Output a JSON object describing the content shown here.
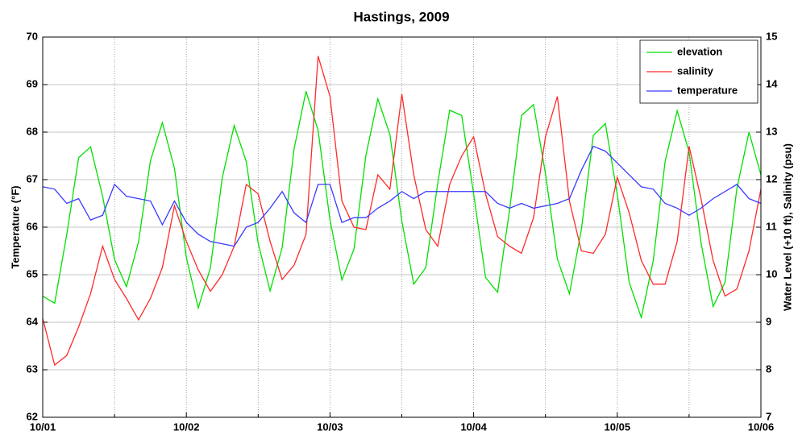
{
  "chart_data": {
    "type": "line",
    "title": "Hastings, 2009",
    "ylabel": "Temperature (°F)",
    "y2label": "Water Level (+10 ft), Salinity (psu)",
    "xlim": [
      0,
      5
    ],
    "ylim": [
      62,
      70
    ],
    "y2lim": [
      7,
      15
    ],
    "xticks": [
      {
        "value": 0,
        "label": "10/01"
      },
      {
        "value": 1,
        "label": "10/02"
      },
      {
        "value": 2,
        "label": "10/03"
      },
      {
        "value": 3,
        "label": "10/04"
      },
      {
        "value": 4,
        "label": "10/05"
      },
      {
        "value": 5,
        "label": "10/06"
      }
    ],
    "x_minor_ticks": [
      0.5,
      1.5,
      2.5,
      3.5,
      4.5
    ],
    "yticks": [
      62,
      63,
      64,
      65,
      66,
      67,
      68,
      69,
      70
    ],
    "y2ticks": [
      7,
      8,
      9,
      10,
      11,
      12,
      13,
      14,
      15
    ],
    "grid": true,
    "legend": "upper right",
    "x": [
      0,
      0.083,
      0.167,
      0.25,
      0.333,
      0.417,
      0.5,
      0.583,
      0.667,
      0.75,
      0.833,
      0.917,
      1,
      1.083,
      1.167,
      1.25,
      1.333,
      1.417,
      1.5,
      1.583,
      1.667,
      1.75,
      1.833,
      1.917,
      2,
      2.083,
      2.167,
      2.25,
      2.333,
      2.417,
      2.5,
      2.583,
      2.667,
      2.75,
      2.833,
      2.917,
      3,
      3.083,
      3.167,
      3.25,
      3.333,
      3.417,
      3.5,
      3.583,
      3.667,
      3.75,
      3.833,
      3.917,
      4,
      4.083,
      4.167,
      4.25,
      4.333,
      4.417,
      4.5,
      4.583,
      4.667,
      4.75,
      4.833,
      4.917,
      5
    ],
    "series": [
      {
        "name": "elevation",
        "color": "#00e000",
        "axis": "y2",
        "values": [
          9.55,
          9.4,
          10.84,
          12.46,
          12.69,
          11.65,
          10.32,
          9.75,
          10.69,
          12.4,
          13.2,
          12.24,
          10.36,
          9.3,
          10.14,
          12.04,
          13.14,
          12.38,
          10.66,
          9.66,
          10.57,
          12.65,
          13.86,
          13.04,
          11.15,
          9.89,
          10.54,
          12.51,
          13.7,
          12.95,
          11.13,
          9.8,
          10.15,
          11.92,
          13.46,
          13.35,
          11.7,
          9.94,
          9.63,
          11.36,
          13.35,
          13.58,
          12.13,
          10.33,
          9.6,
          10.95,
          12.93,
          13.18,
          11.69,
          9.84,
          9.1,
          10.29,
          12.38,
          13.45,
          12.58,
          10.67,
          9.33,
          9.84,
          11.82,
          13.0,
          12.1
        ]
      },
      {
        "name": "salinity",
        "color": "#ff2a2a",
        "axis": "y2",
        "values": [
          9.08,
          8.1,
          8.3,
          8.9,
          9.6,
          10.6,
          9.9,
          9.5,
          9.05,
          9.5,
          10.15,
          11.45,
          10.7,
          10.1,
          9.65,
          10.0,
          10.6,
          11.9,
          11.7,
          10.7,
          9.9,
          10.2,
          10.85,
          14.6,
          13.75,
          11.55,
          11.0,
          10.95,
          12.1,
          11.8,
          13.8,
          12.1,
          10.95,
          10.6,
          11.9,
          12.5,
          12.9,
          11.7,
          10.8,
          10.6,
          10.45,
          11.2,
          12.9,
          13.75,
          11.55,
          10.5,
          10.45,
          10.85,
          12.05,
          11.3,
          10.3,
          9.8,
          9.8,
          10.7,
          12.7,
          11.6,
          10.3,
          9.55,
          9.7,
          10.5,
          11.8
        ]
      },
      {
        "name": "temperature",
        "color": "#3a3aff",
        "values": [
          66.85,
          66.8,
          66.5,
          66.6,
          66.15,
          66.25,
          66.9,
          66.65,
          66.6,
          66.55,
          66.05,
          66.55,
          66.1,
          65.85,
          65.7,
          65.65,
          65.6,
          66.0,
          66.1,
          66.4,
          66.75,
          66.3,
          66.1,
          66.9,
          66.9,
          66.1,
          66.2,
          66.2,
          66.4,
          66.55,
          66.75,
          66.6,
          66.75,
          66.75,
          66.75,
          66.75,
          66.75,
          66.75,
          66.5,
          66.4,
          66.5,
          66.4,
          66.45,
          66.5,
          66.6,
          67.2,
          67.7,
          67.6,
          67.35,
          67.1,
          66.85,
          66.8,
          66.5,
          66.4,
          66.25,
          66.4,
          66.6,
          66.75,
          66.9,
          66.6,
          66.5
        ]
      }
    ]
  }
}
